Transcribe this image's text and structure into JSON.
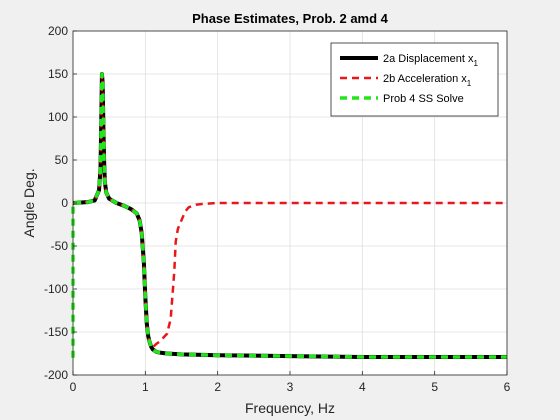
{
  "chart_data": {
    "type": "line",
    "title": "Phase Estimates, Prob. 2 amd 4",
    "xlabel": "Frequency, Hz",
    "ylabel": "Angle Deg.",
    "xlim": [
      0,
      6
    ],
    "ylim": [
      -200,
      200
    ],
    "xticks": [
      "0",
      "1",
      "2",
      "3",
      "4",
      "5",
      "6"
    ],
    "yticks": [
      "200",
      "150",
      "100",
      "50",
      "0",
      "-50",
      "-100",
      "-150",
      "-200"
    ],
    "grid": true,
    "legend_position": "top-right",
    "series": [
      {
        "name": "2a Displacement x",
        "name_subscript": "1",
        "color": "#000000",
        "style": "solid",
        "x": [
          0,
          0.2,
          0.3,
          0.36,
          0.38,
          0.39,
          0.4,
          0.41,
          0.42,
          0.43,
          0.44,
          0.46,
          0.5,
          0.6,
          0.7,
          0.8,
          0.88,
          0.92,
          0.95,
          0.98,
          1.0,
          1.02,
          1.04,
          1.06,
          1.08,
          1.1,
          1.15,
          1.2,
          1.3,
          1.5,
          2.0,
          3.0,
          4.0,
          5.0,
          6.0
        ],
        "y": [
          0,
          1,
          3,
          15,
          40,
          90,
          150,
          140,
          90,
          50,
          25,
          12,
          5,
          0,
          -3,
          -7,
          -12,
          -20,
          -35,
          -70,
          -110,
          -140,
          -155,
          -162,
          -167,
          -170,
          -173,
          -174,
          -175,
          -176,
          -177,
          -178,
          -179,
          -179,
          -179
        ]
      },
      {
        "name": "2b Acceleration x",
        "name_subscript": "1",
        "color": "#e8181a",
        "style": "dashed",
        "x": [
          0,
          0.2,
          0.3,
          0.36,
          0.38,
          0.39,
          0.4,
          0.41,
          0.42,
          0.43,
          0.44,
          0.46,
          0.5,
          0.6,
          0.7,
          0.8,
          0.88,
          0.92,
          0.95,
          0.98,
          1.0,
          1.02,
          1.04,
          1.06,
          1.08,
          1.1,
          1.15,
          1.2,
          1.3,
          1.35,
          1.4,
          1.42,
          1.45,
          1.5,
          1.55,
          1.6,
          1.7,
          1.8,
          2.0,
          3.0,
          4.0,
          5.0,
          6.0
        ],
        "y": [
          0,
          1,
          3,
          15,
          40,
          90,
          150,
          140,
          90,
          50,
          25,
          12,
          5,
          0,
          -3,
          -7,
          -12,
          -20,
          -35,
          -70,
          -110,
          -140,
          -155,
          -162,
          -167,
          -168,
          -164,
          -161,
          -152,
          -135,
          -80,
          -45,
          -30,
          -20,
          -10,
          -5,
          -2,
          -1,
          0,
          0,
          0,
          0,
          0
        ]
      },
      {
        "name": "Prob 4 SS Solve",
        "color": "#22e61a",
        "style": "dashed",
        "x": [
          0,
          0,
          0.01,
          0.2,
          0.3,
          0.36,
          0.38,
          0.39,
          0.4,
          0.41,
          0.42,
          0.43,
          0.44,
          0.46,
          0.5,
          0.6,
          0.7,
          0.8,
          0.88,
          0.92,
          0.95,
          0.98,
          1.0,
          1.02,
          1.04,
          1.06,
          1.08,
          1.1,
          1.15,
          1.2,
          1.3,
          1.5,
          2.0,
          3.0,
          4.0,
          5.0,
          6.0
        ],
        "y": [
          -180,
          0,
          0,
          1,
          3,
          15,
          40,
          90,
          150,
          140,
          90,
          50,
          25,
          12,
          5,
          0,
          -3,
          -7,
          -12,
          -20,
          -35,
          -70,
          -110,
          -140,
          -155,
          -162,
          -167,
          -170,
          -173,
          -174,
          -175,
          -176,
          -177,
          -178,
          -179,
          -179,
          -179
        ]
      }
    ]
  }
}
